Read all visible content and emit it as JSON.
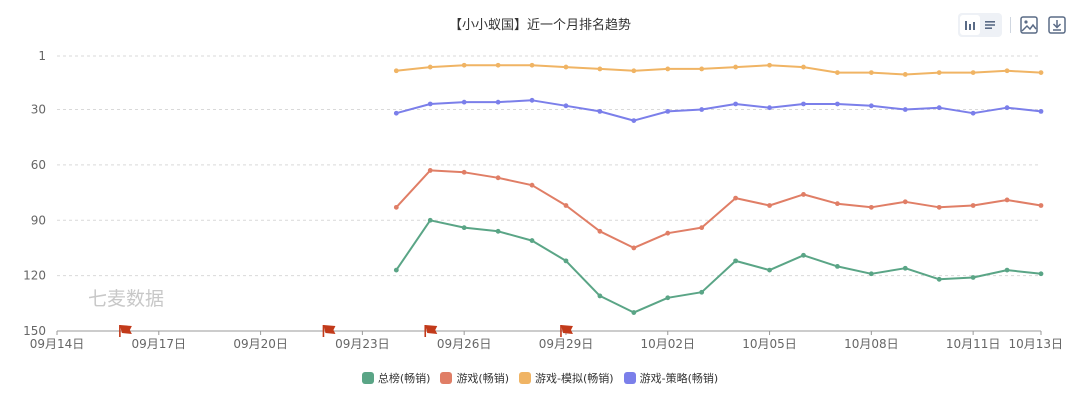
{
  "title": "【小小蚁国】近一个月排名趋势",
  "watermark": "七麦数据",
  "toolbar": {
    "bar_icon": "bar-chart-icon",
    "list_icon": "list-icon",
    "image_icon": "save-image-icon",
    "download_icon": "download-icon"
  },
  "colors": {
    "grid": "#d9d9d9",
    "axis": "#666666",
    "flag": "#c23a1a",
    "watermark": "#c8c8c8"
  },
  "chart_data": {
    "type": "line",
    "title": "【小小蚁国】近一个月排名趋势",
    "xlabel": "",
    "ylabel": "",
    "y_inverted": true,
    "ylim": [
      1,
      150
    ],
    "yticks": [
      1,
      30,
      60,
      90,
      120,
      150
    ],
    "xlim": [
      "09月14日",
      "10月13日"
    ],
    "x_tick_labels": [
      "09月14日",
      "09月17日",
      "09月20日",
      "09月23日",
      "09月26日",
      "09月29日",
      "10月02日",
      "10月05日",
      "10月08日",
      "10月11日",
      "10月13日"
    ],
    "grid": true,
    "legend_position": "bottom",
    "flag_markers": [
      "09月16日",
      "09月22日",
      "09月25日",
      "09月29日"
    ],
    "dates": [
      "09月24日",
      "09月25日",
      "09月26日",
      "09月27日",
      "09月28日",
      "09月29日",
      "09月30日",
      "10月01日",
      "10月02日",
      "10月03日",
      "10月04日",
      "10月05日",
      "10月06日",
      "10月07日",
      "10月08日",
      "10月09日",
      "10月10日",
      "10月11日",
      "10月12日",
      "10月13日"
    ],
    "series": [
      {
        "name": "总榜(畅销)",
        "color": "#5aa586",
        "values": [
          117,
          90,
          94,
          96,
          101,
          112,
          131,
          140,
          132,
          129,
          112,
          117,
          109,
          115,
          119,
          116,
          122,
          121,
          117,
          119
        ]
      },
      {
        "name": "游戏(畅销)",
        "color": "#e07e66",
        "values": [
          83,
          63,
          64,
          67,
          71,
          82,
          96,
          105,
          97,
          94,
          78,
          82,
          76,
          81,
          83,
          80,
          83,
          82,
          79,
          82
        ]
      },
      {
        "name": "游戏-模拟(畅销)",
        "color": "#f0b464",
        "values": [
          9,
          7,
          6,
          6,
          6,
          7,
          8,
          9,
          8,
          8,
          7,
          6,
          7,
          10,
          10,
          11,
          10,
          10,
          9,
          10
        ]
      },
      {
        "name": "游戏-策略(畅销)",
        "color": "#7b7fea",
        "values": [
          32,
          27,
          26,
          26,
          25,
          28,
          31,
          36,
          31,
          30,
          27,
          29,
          27,
          27,
          28,
          30,
          29,
          32,
          29,
          31
        ]
      }
    ]
  }
}
